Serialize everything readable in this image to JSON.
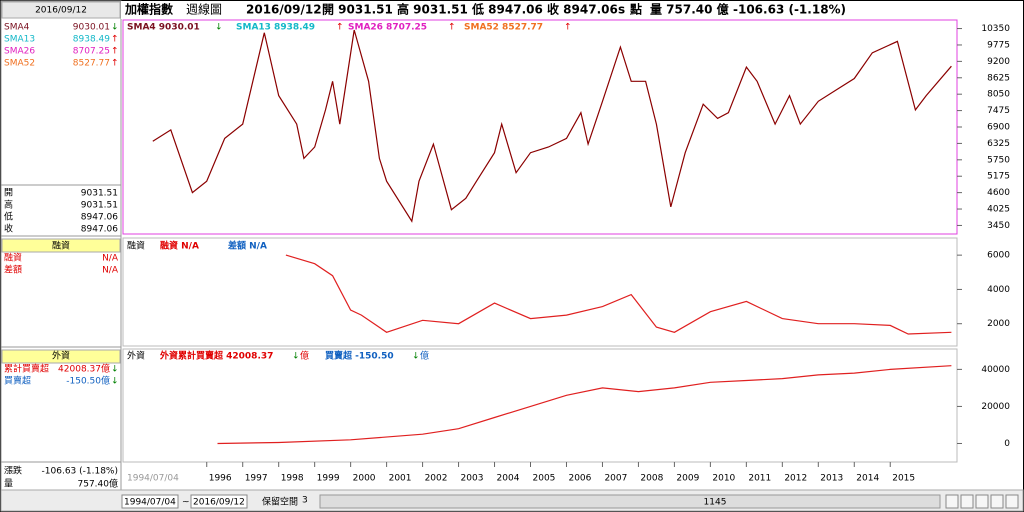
{
  "header": {
    "name": "加權指數",
    "period": "週線圖",
    "date": "2016/09/12",
    "open": "開 9031.51",
    "high": "高 9031.51",
    "low": "低 8947.06",
    "close": "收 8947.06",
    "flag": "s",
    "unit": "點",
    "volume": "量 757.40 億",
    "change": "-106.63 (-1.18%)"
  },
  "side": {
    "date": "2016/09/12",
    "sma": [
      {
        "name": "SMA4",
        "value": "9030.01",
        "arrow": "↓",
        "color": "#7a1020"
      },
      {
        "name": "SMA13",
        "value": "8938.49",
        "arrow": "↑",
        "color": "#14b8c8"
      },
      {
        "name": "SMA26",
        "value": "8707.25",
        "arrow": "↑",
        "color": "#e020c0"
      },
      {
        "name": "SMA52",
        "value": "8527.77",
        "arrow": "↑",
        "color": "#f07020"
      }
    ],
    "ohlc": [
      {
        "label": "開",
        "value": "9031.51"
      },
      {
        "label": "高",
        "value": "9031.51"
      },
      {
        "label": "低",
        "value": "8947.06"
      },
      {
        "label": "收",
        "value": "8947.06"
      }
    ],
    "margin_title": "融資",
    "margin_rows": [
      {
        "label": "融資",
        "value": "N/A"
      },
      {
        "label": "差額",
        "value": "N/A"
      }
    ],
    "foreign_title": "外資",
    "foreign_rows": [
      {
        "label": "累計買賣超",
        "value": "42008.37億",
        "arrow": "↓"
      },
      {
        "label": "買賣超",
        "value": "-150.50億",
        "arrow": "↓"
      }
    ],
    "bottom_rows": [
      {
        "label": "漲跌",
        "value": "-106.63 (-1.18%)"
      },
      {
        "label": "量",
        "value": "757.40億"
      }
    ]
  },
  "price_panel": {
    "legend": [
      "SMA4 9030.01",
      "SMA13 8938.49",
      "SMA26 8707.25",
      "SMA52 8527.77"
    ],
    "legend_arrows": [
      "↓",
      "↑",
      "↑",
      "↑"
    ],
    "ylim": [
      3150,
      10650
    ],
    "yticks": [
      10350,
      9775,
      9200,
      8625,
      8050,
      7475,
      6900,
      6325,
      5750,
      5175,
      4600,
      4025,
      3450
    ],
    "x": [
      1994.5,
      1995.0,
      1995.6,
      1996.0,
      1996.5,
      1997.0,
      1997.6,
      1998.0,
      1998.5,
      1998.7,
      1999.0,
      1999.3,
      1999.5,
      1999.7,
      2000.1,
      2000.5,
      2000.8,
      2001.0,
      2001.7,
      2001.9,
      2002.3,
      2002.8,
      2003.2,
      2003.5,
      2004.0,
      2004.2,
      2004.6,
      2005.0,
      2005.5,
      2006.0,
      2006.4,
      2006.6,
      2007.0,
      2007.5,
      2007.8,
      2008.2,
      2008.5,
      2008.9,
      2009.3,
      2009.8,
      2010.2,
      2010.5,
      2011.0,
      2011.3,
      2011.8,
      2012.2,
      2012.5,
      2013.0,
      2013.5,
      2014.0,
      2014.5,
      2015.2,
      2015.7,
      2016.0,
      2016.7
    ],
    "values": [
      6400,
      6800,
      4600,
      5000,
      6500,
      7000,
      10200,
      8000,
      7000,
      5800,
      6200,
      7500,
      8500,
      7000,
      10300,
      8500,
      5800,
      5000,
      3600,
      5000,
      6300,
      4000,
      4400,
      5000,
      6000,
      7000,
      5300,
      6000,
      6200,
      6500,
      7400,
      6300,
      7800,
      9700,
      8500,
      8500,
      7000,
      4100,
      6000,
      7700,
      7200,
      7400,
      9000,
      8500,
      7000,
      8000,
      7000,
      7800,
      8200,
      8600,
      9500,
      9900,
      7500,
      8000,
      9031
    ],
    "color": "#8b0000"
  },
  "margin_panel": {
    "title": "融資",
    "legend": [
      "融資 N/A",
      "差額 N/A"
    ],
    "ylim": [
      700,
      7000
    ],
    "yticks": [
      6000,
      4000,
      2000
    ],
    "x": [
      1998.2,
      1999.0,
      1999.5,
      2000.0,
      2000.3,
      2001.0,
      2002.0,
      2003.0,
      2004.0,
      2005.0,
      2006.0,
      2007.0,
      2007.8,
      2008.5,
      2009.0,
      2010.0,
      2011.0,
      2012.0,
      2013.0,
      2014.0,
      2015.0,
      2015.5,
      2016.7
    ],
    "values": [
      6000,
      5500,
      4800,
      2800,
      2500,
      1500,
      2200,
      2000,
      3200,
      2300,
      2500,
      3000,
      3700,
      1800,
      1500,
      2700,
      3300,
      2300,
      2000,
      2000,
      1900,
      1400,
      1500
    ],
    "color": "#e02020"
  },
  "foreign_panel": {
    "title": "外資",
    "legend": [
      "外資累計買賣超 42008.37",
      "買賣超 -150.50"
    ],
    "legend_arrows": [
      "↓",
      "↓"
    ],
    "legend_unit": "億",
    "ylim": [
      -10000,
      51000
    ],
    "yticks": [
      40000,
      20000,
      0
    ],
    "x": [
      1996.3,
      1998.0,
      2000.0,
      2002.0,
      2003.0,
      2004.0,
      2005.0,
      2006.0,
      2007.0,
      2008.0,
      2009.0,
      2010.0,
      2011.0,
      2012.0,
      2013.0,
      2014.0,
      2015.0,
      2016.7
    ],
    "values": [
      0,
      500,
      2000,
      5000,
      8000,
      14000,
      20000,
      26000,
      30000,
      28000,
      30000,
      33000,
      34000,
      35000,
      37000,
      38000,
      40000,
      42008
    ],
    "color": "#e02020"
  },
  "x_axis": {
    "xlim": [
      1993.7,
      2016.8
    ],
    "start_label": "1994/07/04",
    "years": [
      1996,
      1997,
      1998,
      1999,
      2000,
      2001,
      2002,
      2003,
      2004,
      2005,
      2006,
      2007,
      2008,
      2009,
      2010,
      2011,
      2012,
      2013,
      2014,
      2015
    ]
  },
  "toolbar": {
    "from": "1994/07/04",
    "sep": "~",
    "to": "2016/09/12",
    "reserve": "保留空間",
    "reserve_value": "3",
    "count": "1145"
  }
}
